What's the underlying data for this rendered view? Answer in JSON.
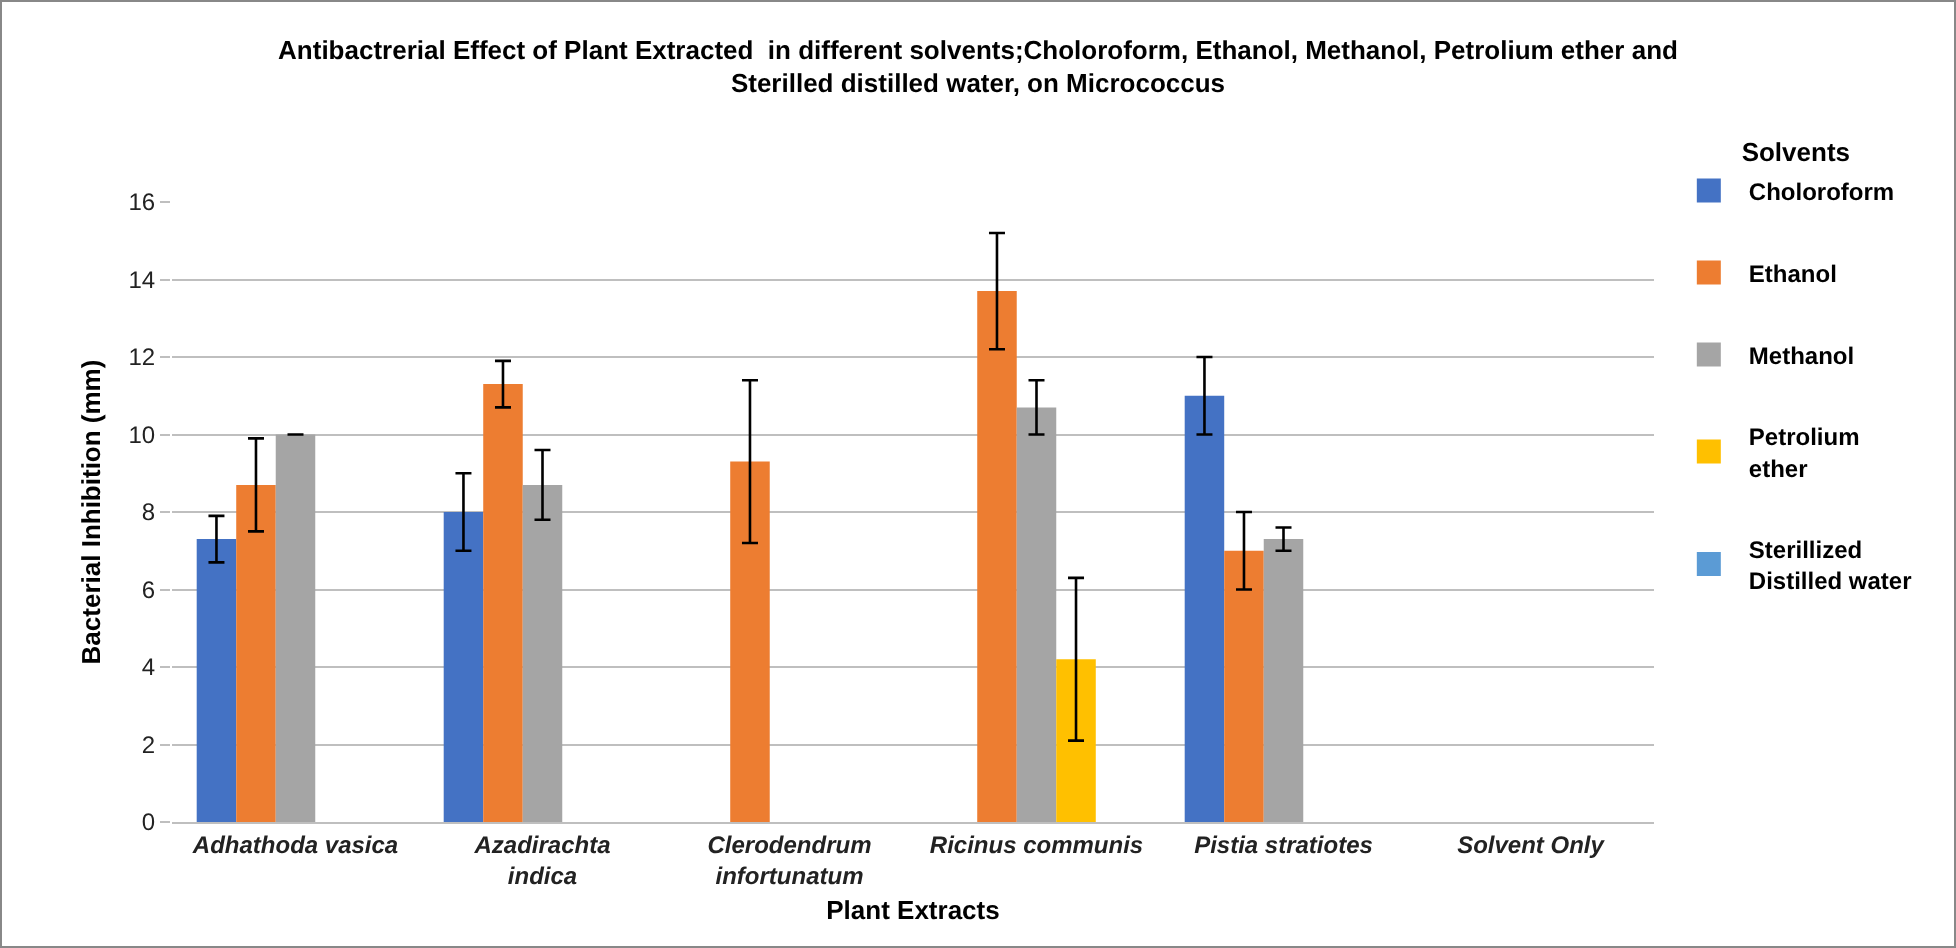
{
  "chart_data": {
    "type": "bar",
    "title": "Antibactrerial Effect of Plant Extracted  in different solvents;Choloroform, Ethanol, Methanol, Petrolium ether and Sterilled distilled water, on Micrococcus",
    "xlabel": "Plant Extracts",
    "ylabel": "Bacterial Inhibition (mm)",
    "legend_title": "Solvents",
    "categories": [
      "Adhathoda vasica",
      "Azadirachta indica",
      "Clerodendrum infortunatum",
      "Ricinus communis",
      "Pistia stratiotes",
      "Solvent Only"
    ],
    "series": [
      {
        "name": "Choloroform",
        "color": "#4472c4",
        "values": [
          7.3,
          8,
          null,
          null,
          11,
          null
        ],
        "errors": [
          0.6,
          1,
          null,
          null,
          1,
          null
        ]
      },
      {
        "name": "Ethanol",
        "color": "#ed7d31",
        "values": [
          8.7,
          11.3,
          9.3,
          13.7,
          7,
          null
        ],
        "errors": [
          1.2,
          0.6,
          2.1,
          1.5,
          1,
          null
        ]
      },
      {
        "name": "Methanol",
        "color": "#a5a5a5",
        "values": [
          10,
          8.7,
          null,
          10.7,
          7.3,
          null
        ],
        "errors": [
          0,
          0.9,
          null,
          0.7,
          0.3,
          null
        ]
      },
      {
        "name": "Petrolium ether",
        "color": "#ffc000",
        "values": [
          null,
          null,
          null,
          4.2,
          null,
          null
        ],
        "errors": [
          null,
          null,
          null,
          2.1,
          null,
          null
        ]
      },
      {
        "name": "Sterillized Distilled water",
        "color": "#5b9bd5",
        "values": [
          0,
          0,
          0,
          0,
          0,
          0
        ]
      }
    ],
    "ylim": [
      0,
      16
    ],
    "yticks": [
      0,
      2,
      4,
      6,
      8,
      10,
      12,
      14,
      16
    ],
    "grid": "y",
    "legend": "right"
  }
}
